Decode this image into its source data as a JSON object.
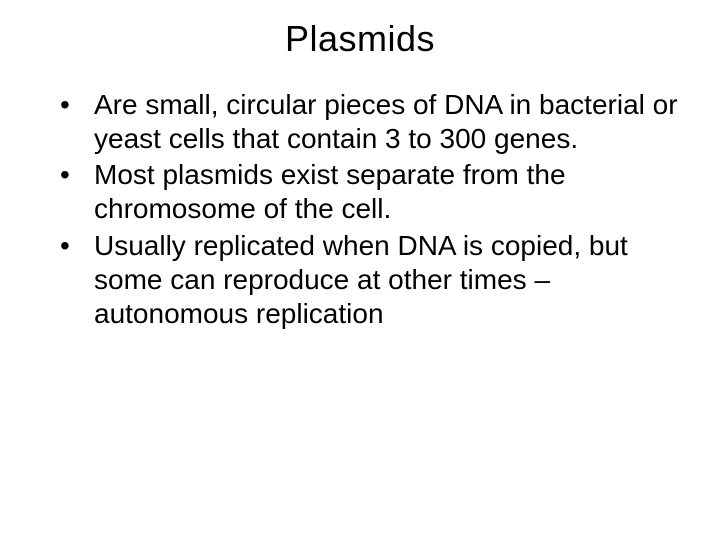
{
  "slide": {
    "title": "Plasmids",
    "title_fontsize": 36,
    "title_color": "#000000",
    "bullets": [
      "Are small, circular pieces of DNA in bacterial or yeast cells that contain 3 to 300 genes.",
      "Most plasmids exist separate from the chromosome of the cell.",
      "Usually replicated when DNA is copied, but some can reproduce at other times – autonomous replication"
    ],
    "bullet_fontsize": 28,
    "bullet_color": "#000000",
    "background_color": "#ffffff",
    "font_family": "Arial"
  }
}
